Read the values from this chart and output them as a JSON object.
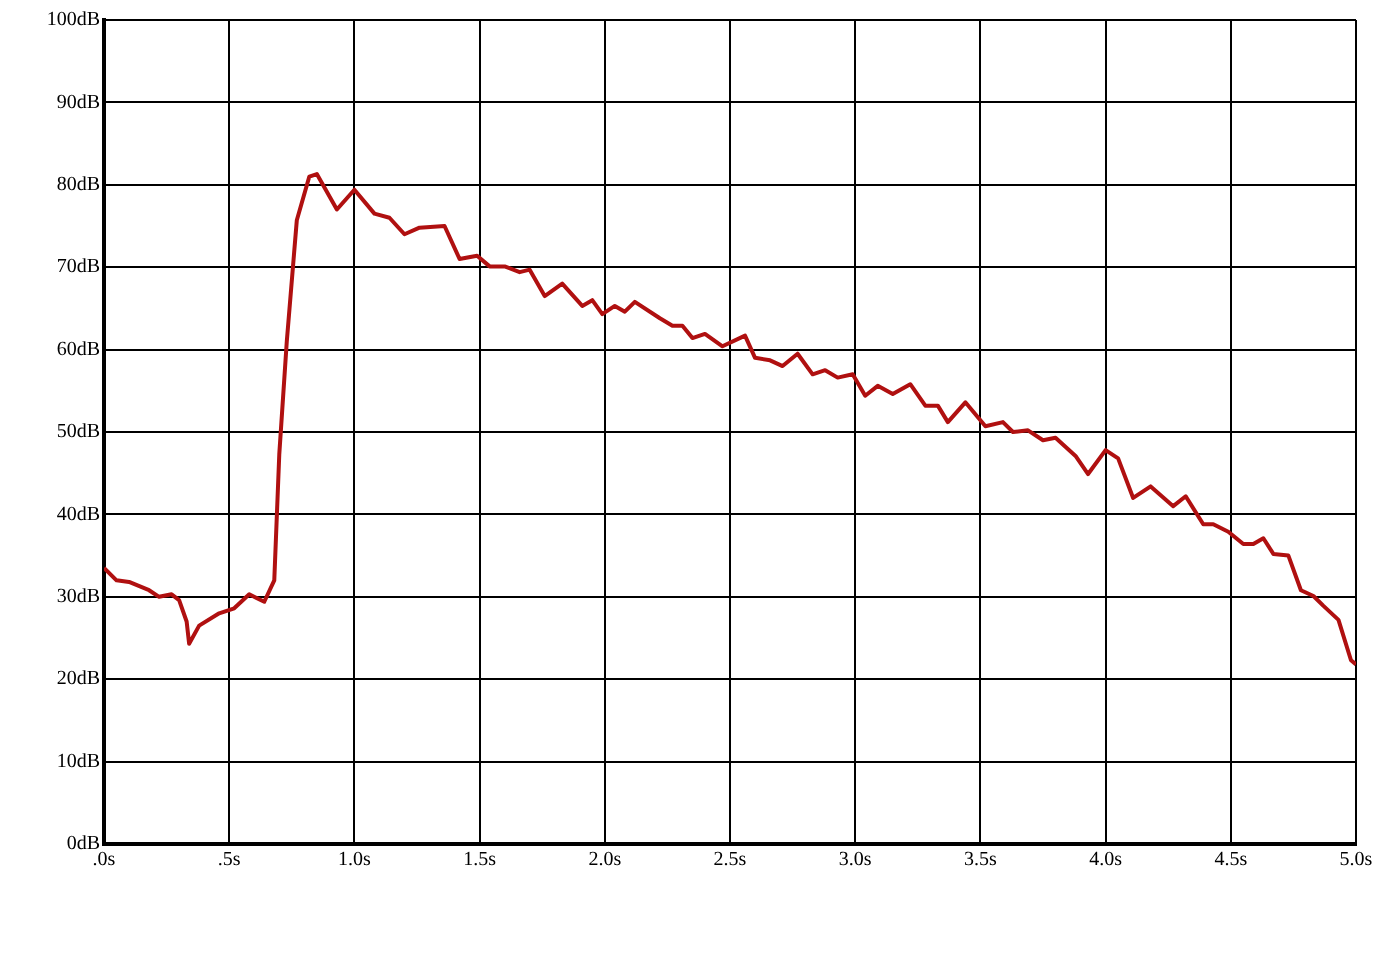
{
  "chart_data": {
    "type": "line",
    "color": "#b01010",
    "grid": true,
    "marker": "none",
    "line_style": "solid",
    "xlim": [
      0,
      5
    ],
    "ylim": [
      0,
      100
    ],
    "xticks": [
      {
        "value": 0,
        "label": ".0s"
      },
      {
        "value": 0.5,
        "label": ".5s"
      },
      {
        "value": 1,
        "label": "1.0s"
      },
      {
        "value": 1.5,
        "label": "1.5s"
      },
      {
        "value": 2,
        "label": "2.0s"
      },
      {
        "value": 2.5,
        "label": "2.5s"
      },
      {
        "value": 3,
        "label": "3.0s"
      },
      {
        "value": 3.5,
        "label": "3.5s"
      },
      {
        "value": 4,
        "label": "4.0s"
      },
      {
        "value": 4.5,
        "label": "4.5s"
      },
      {
        "value": 5,
        "label": "5.0s"
      }
    ],
    "yticks": [
      {
        "value": 0,
        "label": "0dB"
      },
      {
        "value": 10,
        "label": "10dB"
      },
      {
        "value": 20,
        "label": "20dB"
      },
      {
        "value": 30,
        "label": "30dB"
      },
      {
        "value": 40,
        "label": "40dB"
      },
      {
        "value": 50,
        "label": "50dB"
      },
      {
        "value": 60,
        "label": "60dB"
      },
      {
        "value": 70,
        "label": "70dB"
      },
      {
        "value": 80,
        "label": "80dB"
      },
      {
        "value": 90,
        "label": "90dB"
      },
      {
        "value": 100,
        "label": "100dB"
      }
    ],
    "x": [
      0,
      0.05,
      0.1,
      0.18,
      0.22,
      0.27,
      0.3,
      0.33,
      0.34,
      0.38,
      0.46,
      0.52,
      0.58,
      0.64,
      0.68,
      0.7,
      0.73,
      0.77,
      0.82,
      0.85,
      0.93,
      1.0,
      1.08,
      1.14,
      1.2,
      1.26,
      1.36,
      1.42,
      1.49,
      1.54,
      1.6,
      1.66,
      1.7,
      1.76,
      1.83,
      1.91,
      1.95,
      1.99,
      2.04,
      2.08,
      2.12,
      2.22,
      2.27,
      2.31,
      2.35,
      2.4,
      2.47,
      2.56,
      2.6,
      2.66,
      2.71,
      2.77,
      2.83,
      2.88,
      2.93,
      2.99,
      3.04,
      3.09,
      3.15,
      3.22,
      3.28,
      3.33,
      3.37,
      3.44,
      3.52,
      3.59,
      3.63,
      3.69,
      3.75,
      3.8,
      3.88,
      3.93,
      4.0,
      4.05,
      4.11,
      4.18,
      4.27,
      4.32,
      4.39,
      4.43,
      4.49,
      4.55,
      4.59,
      4.63,
      4.67,
      4.73,
      4.78,
      4.83,
      4.87,
      4.93,
      4.98,
      5.0
    ],
    "values": [
      33.5,
      32,
      31.8,
      30.8,
      30,
      30.3,
      29.6,
      27,
      24.3,
      26.5,
      28,
      28.6,
      30.3,
      29.4,
      32,
      47.3,
      61,
      75.7,
      81,
      81.3,
      77,
      79.4,
      76.5,
      76,
      74,
      74.8,
      75,
      71,
      71.4,
      70.1,
      70.1,
      69.4,
      69.7,
      66.5,
      68,
      65.3,
      66,
      64.3,
      65.3,
      64.6,
      65.8,
      63.8,
      62.9,
      62.9,
      61.4,
      61.9,
      60.4,
      61.7,
      59,
      58.7,
      58,
      59.5,
      57,
      57.5,
      56.6,
      57,
      54.4,
      55.6,
      54.6,
      55.8,
      53.2,
      53.2,
      51.2,
      53.6,
      50.7,
      51.2,
      50,
      50.2,
      49,
      49.3,
      47.1,
      44.9,
      47.8,
      46.8,
      42,
      43.4,
      41,
      42.2,
      38.8,
      38.8,
      37.9,
      36.4,
      36.4,
      37.1,
      35.2,
      35,
      30.8,
      30.1,
      28.9,
      27.2,
      22.3,
      21.8
    ]
  }
}
